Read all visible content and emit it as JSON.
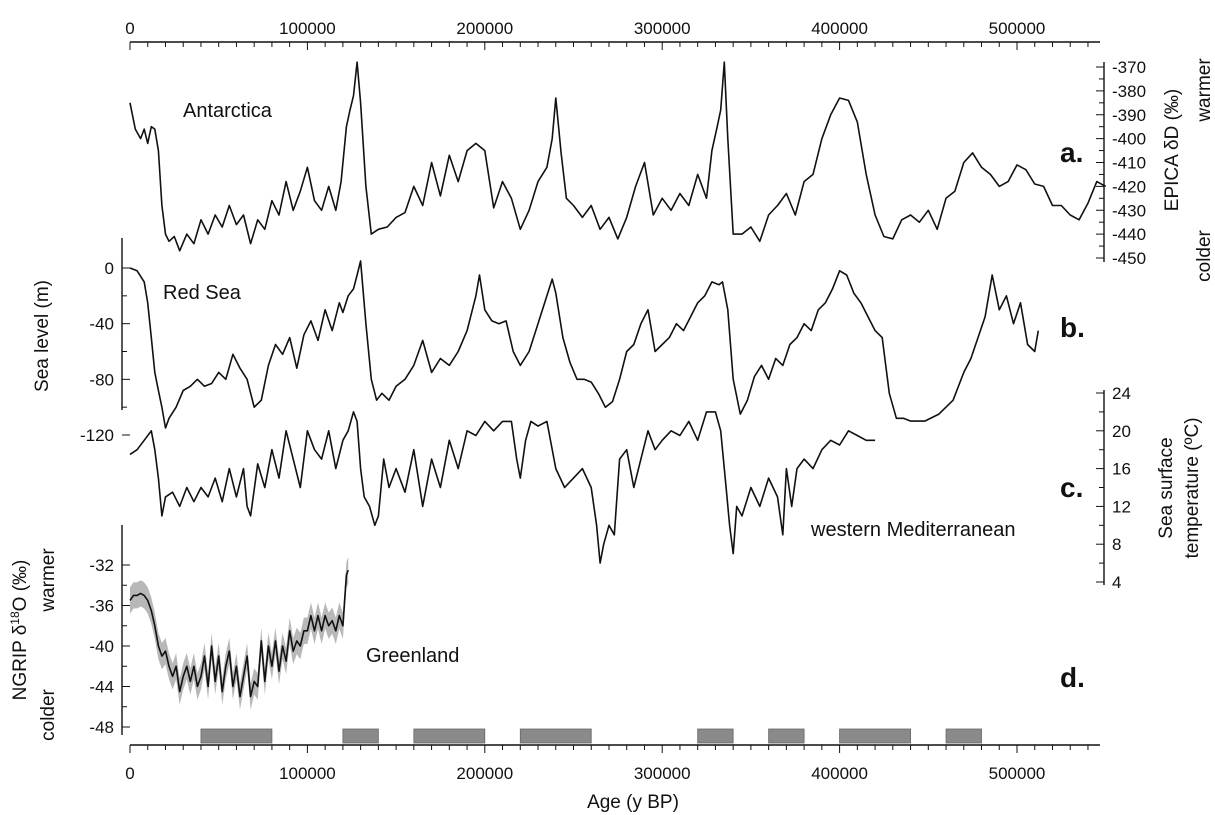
{
  "chart_data": [
    {
      "type": "line",
      "panel_letter": "a.",
      "region_label": "Antarctica",
      "ylabel": "EPICA δD (‰)",
      "ylabel_warm": "warmer",
      "ylabel_cold": "colder",
      "axis_side": "right",
      "ylim": [
        -450,
        -365
      ],
      "yticks": [
        -370,
        -380,
        -390,
        -400,
        -410,
        -420,
        -430,
        -440,
        -450
      ],
      "x": [
        0,
        3000,
        6000,
        8000,
        10000,
        12000,
        14000,
        16000,
        18000,
        20000,
        22000,
        25000,
        28000,
        32000,
        36000,
        40000,
        44000,
        48000,
        52000,
        56000,
        60000,
        64000,
        68000,
        72000,
        76000,
        80000,
        84000,
        88000,
        92000,
        96000,
        100000,
        104000,
        108000,
        112000,
        116000,
        119000,
        122000,
        124000,
        126000,
        128000,
        130000,
        133000,
        136000,
        140000,
        145000,
        150000,
        155000,
        160000,
        165000,
        170000,
        175000,
        180000,
        185000,
        190000,
        195000,
        200000,
        205000,
        210000,
        215000,
        220000,
        225000,
        230000,
        235000,
        238000,
        240000,
        243000,
        246000,
        250000,
        255000,
        260000,
        265000,
        270000,
        275000,
        280000,
        285000,
        290000,
        295000,
        300000,
        305000,
        310000,
        315000,
        320000,
        325000,
        328000,
        331000,
        333000,
        335000,
        337000,
        340000,
        345000,
        350000,
        355000,
        360000,
        365000,
        370000,
        375000,
        380000,
        385000,
        390000,
        395000,
        400000,
        405000,
        410000,
        415000,
        420000,
        425000,
        430000,
        435000,
        440000,
        445000,
        450000,
        455000,
        460000,
        465000,
        470000,
        475000,
        480000,
        485000,
        490000,
        495000,
        500000,
        505000,
        510000,
        515000,
        520000,
        525000,
        530000,
        535000,
        540000,
        545000,
        550000
      ],
      "y": [
        -385,
        -396,
        -400,
        -396,
        -402,
        -395,
        -396,
        -405,
        -428,
        -440,
        -443,
        -441,
        -447,
        -440,
        -444,
        -434,
        -440,
        -432,
        -437,
        -428,
        -436,
        -432,
        -444,
        -434,
        -438,
        -426,
        -432,
        -418,
        -430,
        -422,
        -412,
        -426,
        -430,
        -420,
        -430,
        -418,
        -395,
        -388,
        -382,
        -368,
        -385,
        -420,
        -440,
        -438,
        -437,
        -433,
        -431,
        -420,
        -428,
        -410,
        -424,
        -407,
        -418,
        -405,
        -402,
        -405,
        -429,
        -418,
        -425,
        -438,
        -430,
        -418,
        -412,
        -400,
        -383,
        -406,
        -425,
        -428,
        -433,
        -428,
        -438,
        -433,
        -442,
        -433,
        -420,
        -410,
        -432,
        -425,
        -430,
        -423,
        -428,
        -415,
        -425,
        -405,
        -395,
        -388,
        -368,
        -400,
        -440,
        -440,
        -437,
        -443,
        -432,
        -428,
        -423,
        -432,
        -418,
        -415,
        -400,
        -390,
        -383,
        -384,
        -393,
        -415,
        -432,
        -441,
        -442,
        -434,
        -432,
        -435,
        -430,
        -438,
        -425,
        -422,
        -410,
        -406,
        -412,
        -415,
        -420,
        -418,
        -411,
        -413,
        -419,
        -420,
        -428,
        -428,
        -432,
        -434,
        -427,
        -418,
        -420
      ]
    },
    {
      "type": "line",
      "panel_letter": "b.",
      "region_label": "Red Sea",
      "ylabel": "Sea level (m)",
      "axis_side": "left",
      "ylim": [
        -125,
        20
      ],
      "yticks": [
        0,
        -40,
        -80,
        -120
      ],
      "x": [
        0,
        4000,
        8000,
        10000,
        12000,
        14000,
        16000,
        18000,
        20000,
        22000,
        26000,
        30000,
        34000,
        38000,
        42000,
        46000,
        50000,
        54000,
        58000,
        62000,
        66000,
        70000,
        74000,
        78000,
        82000,
        86000,
        90000,
        94000,
        98000,
        102000,
        106000,
        110000,
        114000,
        118000,
        120000,
        123000,
        126000,
        128000,
        130000,
        133000,
        136000,
        139000,
        142000,
        146000,
        150000,
        155000,
        160000,
        165000,
        170000,
        175000,
        180000,
        185000,
        190000,
        195000,
        197000,
        200000,
        204000,
        208000,
        212000,
        216000,
        220000,
        225000,
        230000,
        235000,
        238000,
        240000,
        244000,
        248000,
        252000,
        256000,
        260000,
        264000,
        268000,
        272000,
        276000,
        280000,
        284000,
        288000,
        292000,
        296000,
        300000,
        304000,
        308000,
        312000,
        316000,
        320000,
        324000,
        328000,
        332000,
        334000,
        337000,
        340000,
        344000,
        348000,
        352000,
        356000,
        360000,
        364000,
        368000,
        372000,
        376000,
        380000,
        384000,
        388000,
        392000,
        396000,
        400000,
        404000,
        408000,
        412000,
        416000,
        420000,
        424000,
        428000,
        432000,
        436000,
        440000,
        448000,
        456000,
        464000,
        470000,
        474000,
        478000,
        482000,
        486000,
        490000,
        494000,
        498000,
        502000,
        506000,
        510000,
        512000
      ],
      "y": [
        0,
        -2,
        -10,
        -25,
        -50,
        -75,
        -88,
        -100,
        -115,
        -108,
        -100,
        -88,
        -85,
        -80,
        -85,
        -83,
        -75,
        -80,
        -62,
        -72,
        -80,
        -100,
        -95,
        -70,
        -55,
        -62,
        -50,
        -72,
        -48,
        -38,
        -52,
        -30,
        -45,
        -25,
        -32,
        -20,
        -15,
        -5,
        5,
        -40,
        -80,
        -95,
        -90,
        -95,
        -85,
        -80,
        -70,
        -52,
        -75,
        -65,
        -70,
        -60,
        -45,
        -20,
        -5,
        -30,
        -38,
        -40,
        -38,
        -60,
        -70,
        -60,
        -40,
        -20,
        -8,
        -18,
        -50,
        -68,
        -80,
        -80,
        -82,
        -90,
        -100,
        -96,
        -80,
        -60,
        -55,
        -40,
        -30,
        -60,
        -55,
        -50,
        -40,
        -45,
        -35,
        -25,
        -20,
        -10,
        -12,
        -10,
        -30,
        -80,
        -105,
        -95,
        -78,
        -70,
        -80,
        -65,
        -70,
        -55,
        -50,
        -40,
        -45,
        -30,
        -25,
        -15,
        -2,
        -5,
        -18,
        -25,
        -35,
        -45,
        -50,
        -90,
        -108,
        -108,
        -110,
        -110,
        -105,
        -95,
        -75,
        -65,
        -50,
        -35,
        -5,
        -30,
        -20,
        -40,
        -25,
        -55,
        -60,
        -45
      ]
    },
    {
      "type": "line",
      "panel_letter": "c.",
      "region_label": "western Mediterranean",
      "ylabel": "Sea surface temperature (ºC)",
      "axis_side": "right",
      "ylim": [
        3,
        24
      ],
      "yticks": [
        24,
        20,
        16,
        12,
        8,
        4
      ],
      "x": [
        0,
        4000,
        8000,
        12000,
        14000,
        16000,
        18000,
        20000,
        24000,
        28000,
        32000,
        36000,
        40000,
        44000,
        48000,
        52000,
        56000,
        60000,
        64000,
        66000,
        68000,
        72000,
        76000,
        80000,
        84000,
        88000,
        92000,
        96000,
        100000,
        104000,
        108000,
        112000,
        116000,
        120000,
        123000,
        126000,
        128000,
        130000,
        132000,
        135000,
        138000,
        140000,
        143000,
        146000,
        150000,
        155000,
        160000,
        165000,
        170000,
        175000,
        180000,
        185000,
        190000,
        195000,
        200000,
        205000,
        210000,
        215000,
        218000,
        220000,
        223000,
        226000,
        230000,
        235000,
        240000,
        245000,
        250000,
        255000,
        260000,
        263000,
        265000,
        267000,
        270000,
        273000,
        276000,
        280000,
        284000,
        288000,
        292000,
        296000,
        300000,
        305000,
        310000,
        315000,
        320000,
        325000,
        330000,
        333000,
        336000,
        338000,
        340000,
        342000,
        345000,
        350000,
        355000,
        360000,
        365000,
        368000,
        370000,
        373000,
        376000,
        380000,
        385000,
        390000,
        395000,
        400000,
        405000,
        410000,
        415000,
        420000
      ],
      "y": [
        17.5,
        18,
        19,
        20,
        18,
        15,
        11,
        13,
        13.5,
        12,
        14,
        12.5,
        14,
        13,
        15,
        12.5,
        16,
        13,
        16,
        12,
        11,
        16.5,
        14,
        18,
        15,
        20,
        17,
        14,
        20,
        18,
        17,
        20,
        16,
        19,
        20,
        22,
        21,
        16,
        13,
        12,
        10,
        11,
        17,
        14,
        16,
        13.5,
        18,
        12,
        17,
        14,
        19,
        16,
        20,
        19.5,
        21,
        20,
        21,
        21,
        17,
        15,
        19,
        21,
        20.5,
        21,
        16,
        14,
        15,
        16,
        14,
        10,
        6,
        8,
        10,
        9,
        17,
        18,
        14,
        17,
        20,
        18,
        19,
        20,
        19.5,
        21,
        19,
        22,
        22,
        20,
        14,
        10,
        7,
        12,
        11,
        14,
        12,
        15,
        13,
        9,
        16,
        12,
        16,
        17,
        16,
        18,
        19,
        18.5,
        20,
        19.5,
        19,
        19
      ]
    },
    {
      "type": "area",
      "panel_letter": "d.",
      "region_label": "Greenland",
      "ylabel": "NGRIP δ¹⁸O (‰)",
      "ylabel_warm": "warmer",
      "ylabel_cold": "colder",
      "axis_side": "left",
      "ylim": [
        -48.5,
        -32
      ],
      "yticks": [
        -32,
        -36,
        -40,
        -44,
        -48
      ],
      "uncertainty_band": true,
      "x": [
        0,
        2000,
        4000,
        6000,
        8000,
        10000,
        12000,
        14000,
        16000,
        18000,
        20000,
        22000,
        24000,
        26000,
        28000,
        30000,
        32000,
        34000,
        36000,
        38000,
        40000,
        42000,
        44000,
        46000,
        48000,
        50000,
        52000,
        54000,
        56000,
        58000,
        60000,
        62000,
        64000,
        66000,
        68000,
        70000,
        72000,
        74000,
        76000,
        78000,
        80000,
        82000,
        84000,
        86000,
        88000,
        90000,
        92000,
        94000,
        96000,
        98000,
        100000,
        102000,
        104000,
        106000,
        108000,
        110000,
        112000,
        114000,
        116000,
        118000,
        120000,
        122000,
        123000
      ],
      "y": [
        -35.5,
        -35,
        -35,
        -34.8,
        -35,
        -35.5,
        -36.5,
        -38,
        -40,
        -41,
        -40.5,
        -42,
        -43,
        -42,
        -44.5,
        -43,
        -42,
        -43.5,
        -42,
        -44,
        -43,
        -41,
        -44,
        -40,
        -43.5,
        -41,
        -44.5,
        -42,
        -40.5,
        -44,
        -42,
        -45,
        -43,
        -41,
        -45,
        -43.5,
        -44,
        -39.5,
        -43.5,
        -40,
        -42,
        -39.5,
        -42.5,
        -40,
        -41.5,
        -38.5,
        -40.5,
        -39.5,
        -40,
        -38.5,
        -38.5,
        -37,
        -38.5,
        -37,
        -38.5,
        -37,
        -38,
        -37.5,
        -38.5,
        -37,
        -38,
        -33,
        -32.5
      ]
    }
  ],
  "x_axis": {
    "label": "Age (y BP)",
    "xlim": [
      0,
      550000
    ],
    "ticks": [
      0,
      100000,
      200000,
      300000,
      400000,
      500000
    ],
    "tick_labels": [
      "0",
      "100000",
      "200000",
      "300000",
      "400000",
      "500000"
    ]
  },
  "interval_bars": [
    {
      "start": 40000,
      "end": 80000
    },
    {
      "start": 120000,
      "end": 140000
    },
    {
      "start": 160000,
      "end": 200000
    },
    {
      "start": 220000,
      "end": 260000
    },
    {
      "start": 320000,
      "end": 340000
    },
    {
      "start": 360000,
      "end": 380000
    },
    {
      "start": 400000,
      "end": 440000
    },
    {
      "start": 460000,
      "end": 480000
    }
  ],
  "colors": {
    "line": "#111111",
    "band": "#b8b8b8",
    "interval_bar": "#8a8a8a"
  }
}
